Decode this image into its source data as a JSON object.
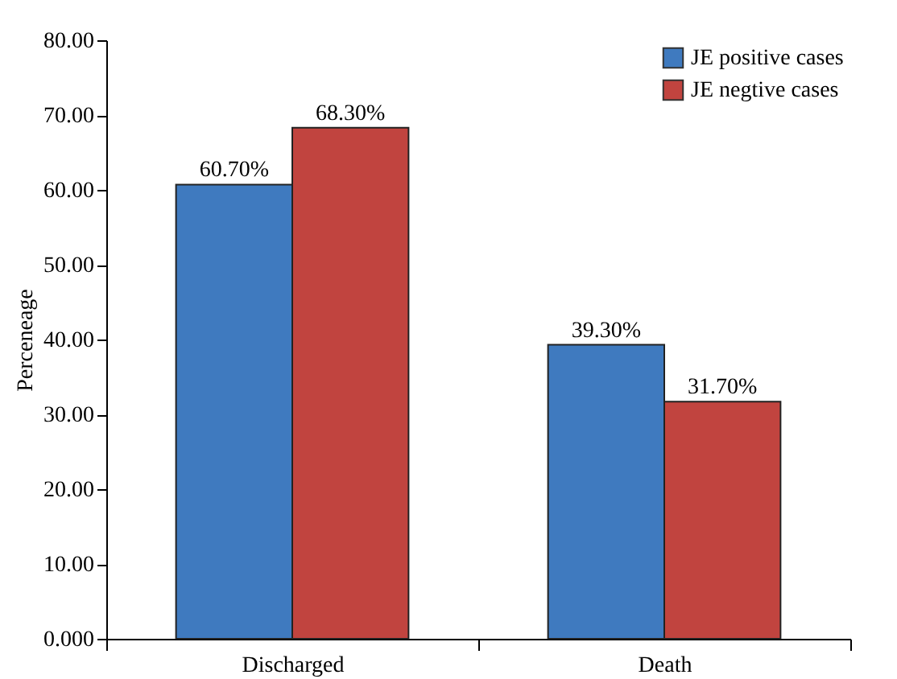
{
  "chart_data": {
    "type": "bar",
    "ylabel": "Perceneage",
    "categories": [
      "Discharged",
      "Death"
    ],
    "series": [
      {
        "name": "JE positive cases",
        "color": "#3f7abf",
        "values": [
          60.7,
          39.3
        ],
        "value_labels": [
          "60.70%",
          "39.30%"
        ]
      },
      {
        "name": "JE negtive cases",
        "color": "#c1443f",
        "values": [
          68.3,
          31.7
        ],
        "value_labels": [
          "68.30%",
          "31.70%"
        ]
      }
    ],
    "ylim": [
      0,
      80
    ],
    "yticks": [
      {
        "value": 0,
        "label": "0.000"
      },
      {
        "value": 10,
        "label": "10.00"
      },
      {
        "value": 20,
        "label": "20.00"
      },
      {
        "value": 30,
        "label": "30.00"
      },
      {
        "value": 40,
        "label": "40.00"
      },
      {
        "value": 50,
        "label": "50.00"
      },
      {
        "value": 60,
        "label": "60.00"
      },
      {
        "value": 70,
        "label": "70.00"
      },
      {
        "value": 80,
        "label": "80.00"
      }
    ],
    "grid": false,
    "legend": "top right"
  }
}
